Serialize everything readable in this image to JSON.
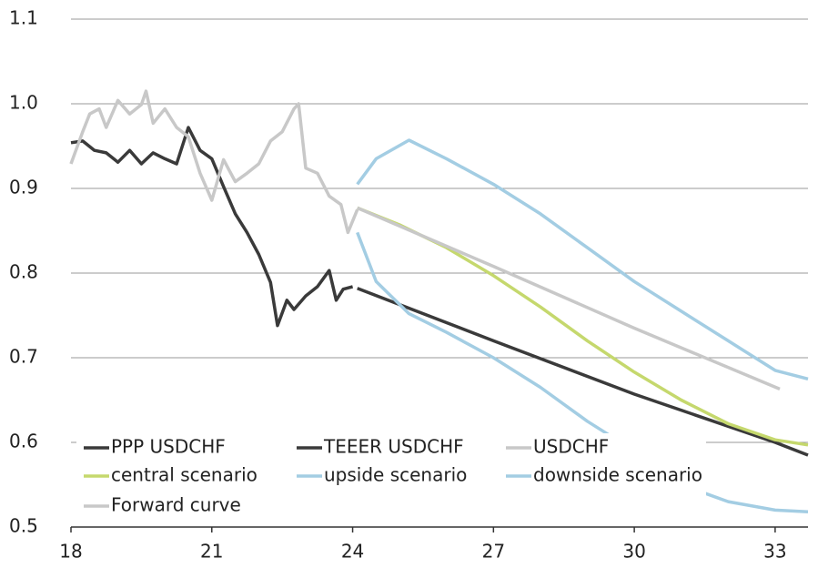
{
  "chart_data": {
    "type": "line",
    "xlim": [
      18,
      33.7
    ],
    "ylim": [
      0.5,
      1.1
    ],
    "xticks": [
      18,
      21,
      24,
      27,
      30,
      33
    ],
    "yticks": [
      0.5,
      0.6,
      0.7,
      0.8,
      0.9,
      {
        "value": 1,
        "label": "1.0"
      },
      1.1
    ],
    "grid": true,
    "legend": "bottom-left",
    "series": [
      {
        "name": "PPP USDCHF",
        "color": "#3a3a3a",
        "x": [
          24.1,
          27,
          30,
          33,
          33.7
        ],
        "values": [
          0.782,
          0.72,
          0.657,
          0.6,
          0.585
        ]
      },
      {
        "name": "TEEER USDCHF",
        "color": "#3a3a3a",
        "x": [
          18,
          18.25,
          18.5,
          18.75,
          19,
          19.25,
          19.5,
          19.75,
          20,
          20.25,
          20.5,
          20.75,
          21,
          21.25,
          21.5,
          21.75,
          22,
          22.25,
          22.4,
          22.6,
          22.75,
          23,
          23.25,
          23.5,
          23.65,
          23.8,
          24
        ],
        "values": [
          0.954,
          0.956,
          0.945,
          0.942,
          0.931,
          0.945,
          0.929,
          0.942,
          0.935,
          0.929,
          0.972,
          0.945,
          0.935,
          0.902,
          0.87,
          0.848,
          0.822,
          0.789,
          0.738,
          0.768,
          0.757,
          0.773,
          0.784,
          0.803,
          0.768,
          0.781,
          0.784
        ]
      },
      {
        "name": "USDCHF",
        "color": "#c8c8c8",
        "x": [
          18,
          18.25,
          18.4,
          18.6,
          18.75,
          19,
          19.25,
          19.5,
          19.6,
          19.75,
          20,
          20.25,
          20.5,
          20.75,
          21,
          21.25,
          21.5,
          21.75,
          22,
          22.25,
          22.5,
          22.75,
          22.85,
          23,
          23.25,
          23.5,
          23.75,
          23.9,
          24.1
        ],
        "values": [
          0.929,
          0.967,
          0.988,
          0.994,
          0.972,
          1.004,
          0.988,
          0.999,
          1.015,
          0.977,
          0.994,
          0.972,
          0.961,
          0.918,
          0.886,
          0.934,
          0.908,
          0.918,
          0.929,
          0.956,
          0.967,
          0.994,
          1.0,
          0.924,
          0.918,
          0.891,
          0.881,
          0.848,
          0.875
        ]
      },
      {
        "name": "central scenario",
        "color": "#c5d86d",
        "x": [
          24.1,
          25,
          26,
          27,
          28,
          29,
          30,
          31,
          32,
          33,
          33.7
        ],
        "values": [
          0.877,
          0.857,
          0.83,
          0.797,
          0.76,
          0.72,
          0.683,
          0.65,
          0.622,
          0.603,
          0.597
        ]
      },
      {
        "name": "upside scenario",
        "color": "#a3cde3",
        "x": [
          24.1,
          24.5,
          25.2,
          26,
          27,
          28,
          29,
          30,
          31,
          32,
          33,
          33.7
        ],
        "values": [
          0.905,
          0.935,
          0.957,
          0.935,
          0.905,
          0.87,
          0.83,
          0.79,
          0.755,
          0.72,
          0.685,
          0.675
        ]
      },
      {
        "name": "downside scenario",
        "color": "#a3cde3",
        "x": [
          24.1,
          24.5,
          25.2,
          26,
          27,
          28,
          29,
          30,
          31,
          31.5,
          32,
          33,
          33.7
        ],
        "values": [
          0.848,
          0.79,
          0.752,
          0.73,
          0.7,
          0.665,
          0.625,
          0.59,
          0.56,
          0.54,
          0.53,
          0.52,
          0.518
        ]
      },
      {
        "name": "Forward curve",
        "color": "#c8c8c8",
        "x": [
          24.1,
          27,
          30,
          33.1
        ],
        "values": [
          0.877,
          0.808,
          0.735,
          0.663
        ]
      }
    ]
  }
}
